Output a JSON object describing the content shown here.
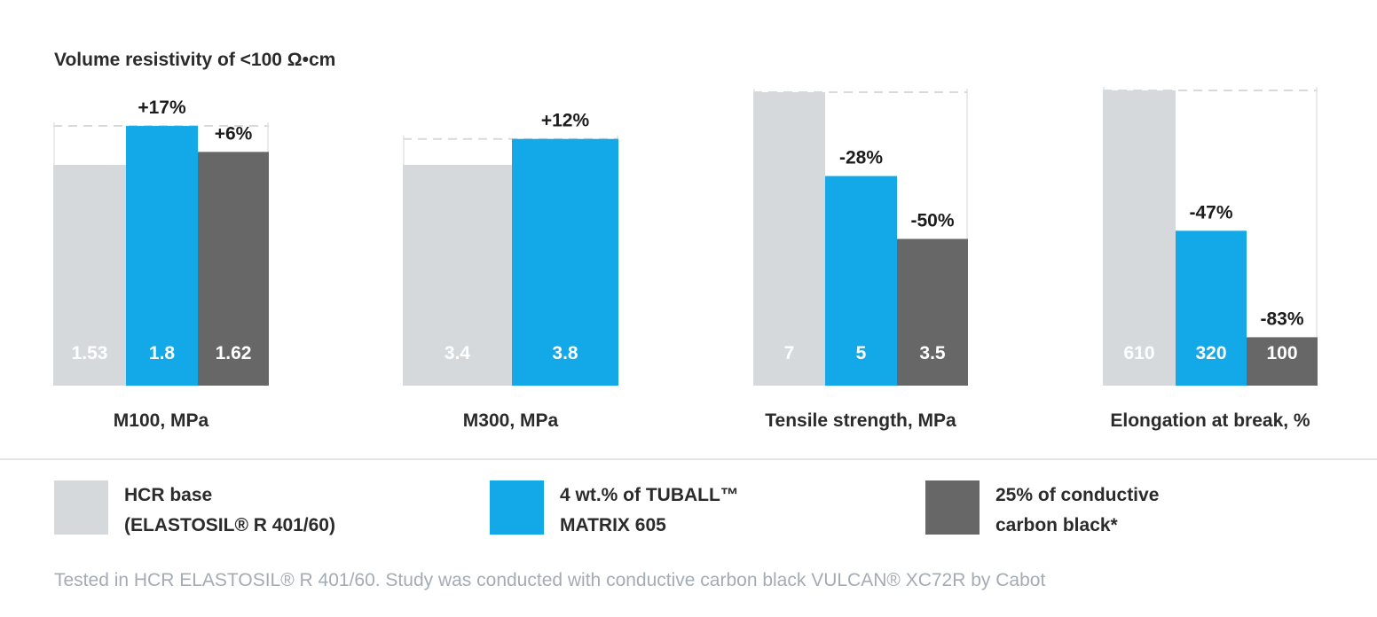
{
  "chart_data": {
    "type": "bar",
    "title": "Volume resistivity of <100 Ω•cm",
    "series": [
      {
        "name": "HCR base (ELASTOSIL® R 401/60)",
        "legend_lines": [
          "HCR base",
          "(ELASTOSIL® R 401/60)"
        ],
        "color": "#d6d9dc"
      },
      {
        "name": "4 wt.% of TUBALL™ MATRIX 605",
        "legend_lines": [
          "4 wt.% of TUBALL™",
          "MATRIX 605"
        ],
        "color": "#13a9e8"
      },
      {
        "name": "25% of conductive carbon black*",
        "legend_lines": [
          "25% of conductive",
          "carbon black*"
        ],
        "color": "#676767"
      }
    ],
    "groups": [
      {
        "category": "M100, MPa",
        "bars": [
          {
            "series": 0,
            "value": 1.53,
            "label": "1.53",
            "pct": null
          },
          {
            "series": 1,
            "value": 1.8,
            "label": "1.8",
            "pct": "+17%"
          },
          {
            "series": 2,
            "value": 1.62,
            "label": "1.62",
            "pct": "+6%"
          }
        ]
      },
      {
        "category": "M300, MPa",
        "bars": [
          {
            "series": 0,
            "value": 3.4,
            "label": "3.4",
            "pct": null
          },
          {
            "series": 1,
            "value": 3.8,
            "label": "3.8",
            "pct": "+12%"
          }
        ]
      },
      {
        "category": "Tensile strength, MPa",
        "bars": [
          {
            "series": 0,
            "value": 7,
            "label": "7",
            "pct": null
          },
          {
            "series": 1,
            "value": 5,
            "label": "5",
            "pct": "-28%"
          },
          {
            "series": 2,
            "value": 3.5,
            "label": "3.5",
            "pct": "-50%"
          }
        ]
      },
      {
        "category": "Elongation at break, %",
        "bars": [
          {
            "series": 0,
            "value": 610,
            "label": "610",
            "pct": null
          },
          {
            "series": 1,
            "value": 320,
            "label": "320",
            "pct": "-47%"
          },
          {
            "series": 2,
            "value": 100,
            "label": "100",
            "pct": "-83%"
          }
        ]
      }
    ],
    "footnote": "Tested in HCR ELASTOSIL® R 401/60. Study was conducted with conductive carbon black VULCAN® XC72R by Cabot"
  }
}
